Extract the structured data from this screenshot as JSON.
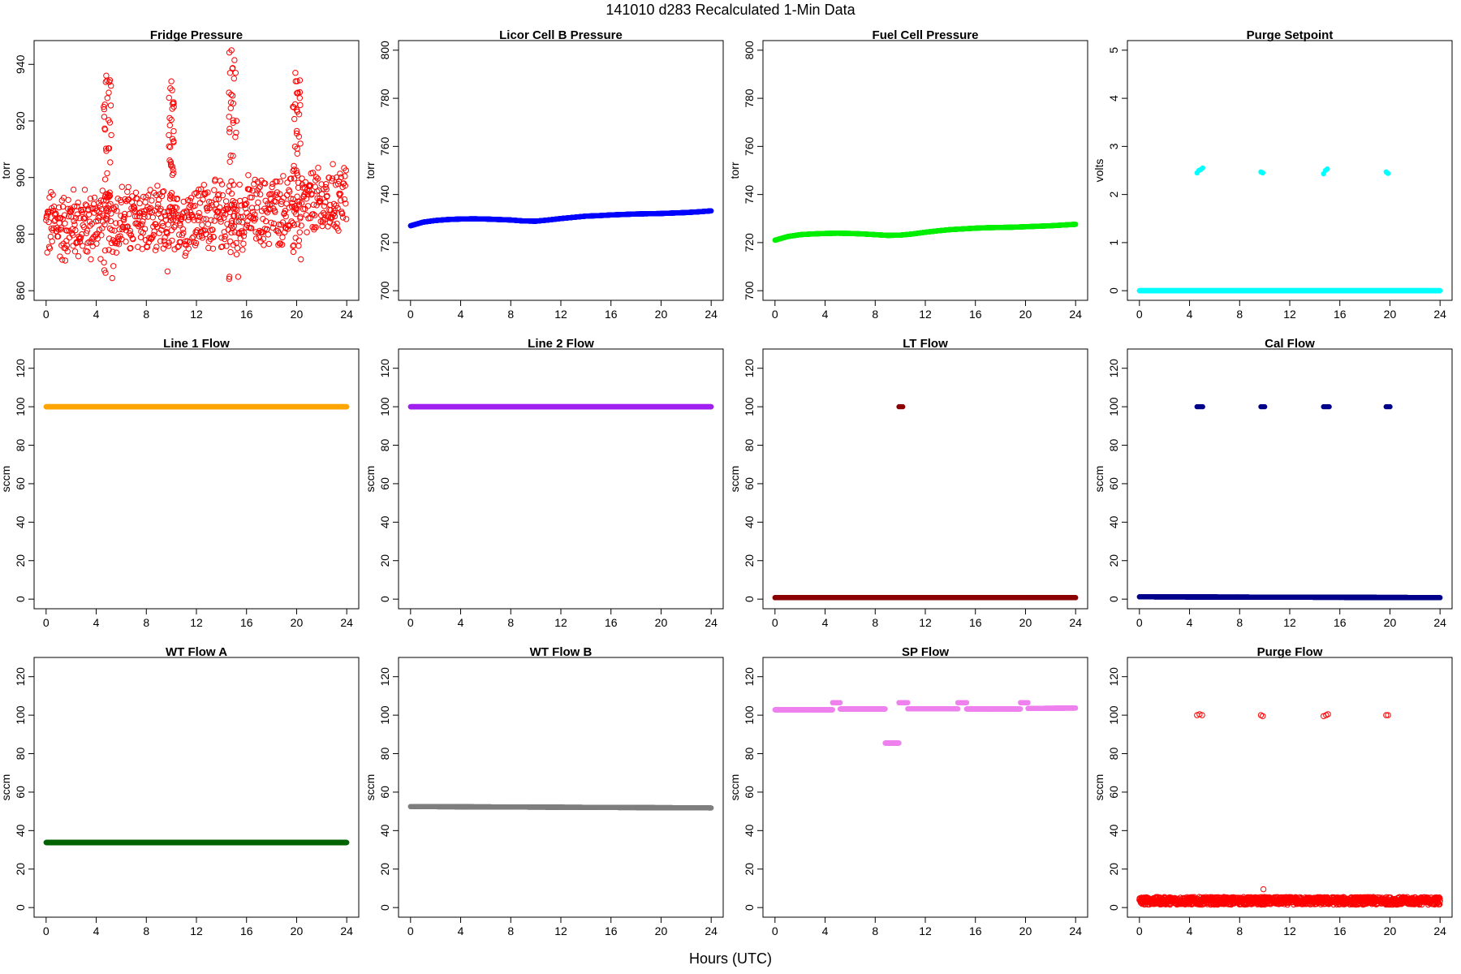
{
  "page": {
    "title": "141010   d283   Recalculated 1-Min Data",
    "xlabel": "Hours (UTC)"
  },
  "chart_data": [
    {
      "type": "scatter",
      "title": "Fridge Pressure",
      "ylabel": "torr",
      "color": "#ff0000",
      "marker": "open-circle",
      "xlim": [
        0,
        24
      ],
      "ylim": [
        860,
        945
      ],
      "yticks": [
        860,
        880,
        900,
        920,
        940
      ],
      "xticks": [
        0,
        4,
        8,
        12,
        16,
        20,
        24
      ],
      "series": [
        {
          "x": [
            0,
            0.5,
            1,
            1.5,
            2,
            2.5,
            3,
            3.5,
            4,
            4.5,
            5,
            5.5,
            6,
            6.5,
            7,
            7.5,
            8,
            8.5,
            9,
            9.5,
            10,
            10.5,
            11,
            11.5,
            12,
            12.5,
            13,
            13.5,
            14,
            14.5,
            15,
            15.5,
            16,
            16.5,
            17,
            17.5,
            18,
            18.5,
            19,
            19.5,
            20,
            20.5,
            21,
            21.5,
            22,
            22.5,
            23,
            23.5,
            24
          ],
          "y": [
            882,
            884,
            883,
            882,
            885,
            883,
            884,
            882,
            885,
            884,
            900,
            884,
            886,
            885,
            884,
            886,
            885,
            884,
            883,
            884,
            900,
            886,
            885,
            886,
            887,
            886,
            887,
            886,
            887,
            886,
            900,
            887,
            888,
            887,
            888,
            887,
            889,
            888,
            889,
            888,
            905,
            889,
            890,
            891,
            890,
            891,
            892,
            893,
            895
          ]
        }
      ],
      "spikes": [
        {
          "x": [
            4.6,
            4.8,
            5.0,
            5.2
          ],
          "y": [
            925,
            936,
            930,
            915
          ]
        },
        {
          "x": [
            9.8,
            10.0,
            10.2
          ],
          "y": [
            915,
            934,
            925
          ]
        },
        {
          "x": [
            14.6,
            14.8,
            15.0,
            15.2
          ],
          "y": [
            930,
            945,
            935,
            920
          ]
        },
        {
          "x": [
            19.7,
            19.9,
            20.1,
            20.3
          ],
          "y": [
            925,
            937,
            930,
            912
          ]
        }
      ],
      "spread": 12
    },
    {
      "type": "scatter",
      "title": "Licor Cell B Pressure",
      "ylabel": "torr",
      "color": "#0000ff",
      "marker": "filled-circle",
      "xlim": [
        0,
        24
      ],
      "ylim": [
        700,
        800
      ],
      "yticks": [
        700,
        720,
        740,
        760,
        780,
        800
      ],
      "xticks": [
        0,
        4,
        8,
        12,
        16,
        20,
        24
      ],
      "series": [
        {
          "x": [
            0,
            1,
            2,
            3,
            4,
            5,
            6,
            7,
            8,
            9,
            10,
            11,
            12,
            13,
            14,
            15,
            16,
            17,
            18,
            19,
            20,
            21,
            22,
            23,
            24
          ],
          "y": [
            727,
            728.5,
            729.2,
            729.6,
            729.8,
            729.9,
            729.8,
            729.6,
            729.4,
            729,
            728.9,
            729.4,
            730,
            730.5,
            731,
            731.2,
            731.5,
            731.7,
            731.9,
            732,
            732.1,
            732.3,
            732.5,
            732.8,
            733.2
          ]
        }
      ]
    },
    {
      "type": "scatter",
      "title": "Fuel Cell Pressure",
      "ylabel": "torr",
      "color": "#00ee00",
      "marker": "filled-circle",
      "xlim": [
        0,
        24
      ],
      "ylim": [
        700,
        800
      ],
      "yticks": [
        700,
        720,
        740,
        760,
        780,
        800
      ],
      "xticks": [
        0,
        4,
        8,
        12,
        16,
        20,
        24
      ],
      "series": [
        {
          "x": [
            0,
            1,
            2,
            3,
            4,
            5,
            6,
            7,
            8,
            9,
            10,
            11,
            12,
            13,
            14,
            15,
            16,
            17,
            18,
            19,
            20,
            21,
            22,
            23,
            24
          ],
          "y": [
            721,
            722.5,
            723.3,
            723.6,
            723.8,
            723.9,
            723.8,
            723.6,
            723.3,
            723,
            723.1,
            723.6,
            724.3,
            724.9,
            725.4,
            725.7,
            726,
            726.2,
            726.3,
            726.4,
            726.6,
            726.8,
            727,
            727.3,
            727.6
          ]
        }
      ]
    },
    {
      "type": "scatter",
      "title": "Purge Setpoint",
      "ylabel": "volts",
      "color": "#00ffff",
      "marker": "filled-circle",
      "xlim": [
        0,
        24
      ],
      "ylim": [
        0,
        5
      ],
      "yticks": [
        0,
        1,
        2,
        3,
        4,
        5
      ],
      "xticks": [
        0,
        4,
        8,
        12,
        16,
        20,
        24
      ],
      "series": [
        {
          "x": [
            0,
            24
          ],
          "y": [
            0,
            0
          ],
          "style": "band"
        },
        {
          "x": [
            4.6,
            4.75,
            4.9,
            5.05,
            9.7,
            9.85,
            14.7,
            14.85,
            15.0,
            19.7,
            19.85
          ],
          "y": [
            2.45,
            2.5,
            2.52,
            2.55,
            2.47,
            2.45,
            2.43,
            2.5,
            2.53,
            2.47,
            2.44
          ],
          "style": "points"
        }
      ]
    },
    {
      "type": "scatter",
      "title": "Line 1 Flow",
      "ylabel": "sccm",
      "color": "#ffa500",
      "marker": "filled-circle",
      "xlim": [
        0,
        24
      ],
      "ylim": [
        0,
        125
      ],
      "yticks": [
        0,
        20,
        40,
        60,
        80,
        100,
        120
      ],
      "xticks": [
        0,
        4,
        8,
        12,
        16,
        20,
        24
      ],
      "series": [
        {
          "x": [
            0,
            24
          ],
          "y": [
            100,
            100
          ],
          "style": "band"
        }
      ]
    },
    {
      "type": "scatter",
      "title": "Line 2 Flow",
      "ylabel": "sccm",
      "color": "#a020f0",
      "marker": "filled-circle",
      "xlim": [
        0,
        24
      ],
      "ylim": [
        0,
        125
      ],
      "yticks": [
        0,
        20,
        40,
        60,
        80,
        100,
        120
      ],
      "xticks": [
        0,
        4,
        8,
        12,
        16,
        20,
        24
      ],
      "series": [
        {
          "x": [
            0,
            24
          ],
          "y": [
            100,
            100
          ],
          "style": "band"
        }
      ]
    },
    {
      "type": "scatter",
      "title": "LT Flow",
      "ylabel": "sccm",
      "color": "#8b0000",
      "marker": "filled-circle",
      "xlim": [
        0,
        24
      ],
      "ylim": [
        0,
        125
      ],
      "yticks": [
        0,
        20,
        40,
        60,
        80,
        100,
        120
      ],
      "xticks": [
        0,
        4,
        8,
        12,
        16,
        20,
        24
      ],
      "series": [
        {
          "x": [
            0,
            24
          ],
          "y": [
            0.8,
            0.8
          ],
          "style": "band"
        },
        {
          "x": [
            9.9,
            10.05,
            10.2
          ],
          "y": [
            100,
            100,
            100
          ],
          "style": "points"
        }
      ]
    },
    {
      "type": "scatter",
      "title": "Cal Flow",
      "ylabel": "sccm",
      "color": "#00008b",
      "marker": "filled-circle",
      "xlim": [
        0,
        24
      ],
      "ylim": [
        0,
        125
      ],
      "yticks": [
        0,
        20,
        40,
        60,
        80,
        100,
        120
      ],
      "xticks": [
        0,
        4,
        8,
        12,
        16,
        20,
        24
      ],
      "series": [
        {
          "x": [
            0,
            24
          ],
          "y": [
            1.2,
            0.8
          ],
          "style": "band"
        },
        {
          "x": [
            4.6,
            4.75,
            4.9,
            5.05,
            9.7,
            9.85,
            10.0,
            14.7,
            14.85,
            15.0,
            15.15,
            19.7,
            19.85,
            20.0
          ],
          "y": [
            100,
            100,
            100,
            100,
            100,
            100,
            100,
            100,
            100,
            100,
            100,
            100,
            100,
            100
          ],
          "style": "points"
        }
      ]
    },
    {
      "type": "scatter",
      "title": "WT Flow A",
      "ylabel": "sccm",
      "color": "#006400",
      "marker": "filled-circle",
      "xlim": [
        0,
        24
      ],
      "ylim": [
        0,
        125
      ],
      "yticks": [
        0,
        20,
        40,
        60,
        80,
        100,
        120
      ],
      "xticks": [
        0,
        4,
        8,
        12,
        16,
        20,
        24
      ],
      "series": [
        {
          "x": [
            0,
            24
          ],
          "y": [
            33.8,
            33.8
          ],
          "style": "band"
        }
      ]
    },
    {
      "type": "scatter",
      "title": "WT Flow B",
      "ylabel": "sccm",
      "color": "#7f7f7f",
      "marker": "filled-circle",
      "xlim": [
        0,
        24
      ],
      "ylim": [
        0,
        125
      ],
      "yticks": [
        0,
        20,
        40,
        60,
        80,
        100,
        120
      ],
      "xticks": [
        0,
        4,
        8,
        12,
        16,
        20,
        24
      ],
      "series": [
        {
          "x": [
            0,
            24
          ],
          "y": [
            52.5,
            51.8
          ],
          "style": "band"
        }
      ]
    },
    {
      "type": "scatter",
      "title": "SP Flow",
      "ylabel": "sccm",
      "color": "#ee82ee",
      "marker": "filled-circle",
      "xlim": [
        0,
        24
      ],
      "ylim": [
        0,
        125
      ],
      "yticks": [
        0,
        20,
        40,
        60,
        80,
        100,
        120
      ],
      "xticks": [
        0,
        4,
        8,
        12,
        16,
        20,
        24
      ],
      "series": [
        {
          "x": [
            0,
            4.6
          ],
          "y": [
            102.8,
            102.8
          ],
          "style": "band"
        },
        {
          "x": [
            4.6,
            5.2
          ],
          "y": [
            106.5,
            106.5
          ],
          "style": "band"
        },
        {
          "x": [
            5.2,
            8.8
          ],
          "y": [
            103.2,
            103.2
          ],
          "style": "band"
        },
        {
          "x": [
            8.8,
            9.9
          ],
          "y": [
            85.5,
            85.5
          ],
          "style": "band"
        },
        {
          "x": [
            9.9,
            10.6
          ],
          "y": [
            106.5,
            106.5
          ],
          "style": "band"
        },
        {
          "x": [
            10.6,
            14.6
          ],
          "y": [
            103.3,
            103.3
          ],
          "style": "band"
        },
        {
          "x": [
            14.6,
            15.3
          ],
          "y": [
            106.5,
            106.5
          ],
          "style": "band"
        },
        {
          "x": [
            15.3,
            19.6
          ],
          "y": [
            103.2,
            103.2
          ],
          "style": "band"
        },
        {
          "x": [
            19.6,
            20.2
          ],
          "y": [
            106.5,
            106.5
          ],
          "style": "band"
        },
        {
          "x": [
            20.2,
            24
          ],
          "y": [
            103.5,
            103.7
          ],
          "style": "band"
        }
      ]
    },
    {
      "type": "scatter",
      "title": "Purge Flow",
      "ylabel": "sccm",
      "color": "#ff0000",
      "marker": "open-circle",
      "xlim": [
        0,
        24
      ],
      "ylim": [
        0,
        125
      ],
      "yticks": [
        0,
        20,
        40,
        60,
        80,
        100,
        120
      ],
      "xticks": [
        0,
        4,
        8,
        12,
        16,
        20,
        24
      ],
      "series": [
        {
          "x": [
            0,
            24
          ],
          "y": [
            3.5,
            3.5
          ],
          "style": "noisy-band"
        },
        {
          "x": [
            4.6,
            4.8,
            5.0,
            9.7,
            9.85,
            14.7,
            14.9,
            15.05,
            19.7,
            19.85
          ],
          "y": [
            100,
            100.5,
            100,
            100,
            99.5,
            99.5,
            100,
            100.5,
            100,
            100
          ],
          "style": "points"
        },
        {
          "x": [
            9.9
          ],
          "y": [
            9.5
          ],
          "style": "points"
        }
      ]
    }
  ]
}
